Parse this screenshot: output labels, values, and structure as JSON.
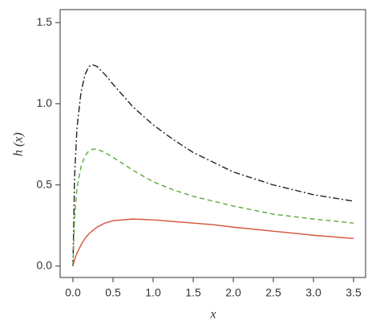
{
  "chart_data": {
    "type": "line",
    "x_label": "x",
    "y_label": "h (x)",
    "x": [
      0,
      0.02,
      0.05,
      0.1,
      0.15,
      0.2,
      0.25,
      0.3,
      0.4,
      0.5,
      0.75,
      1.0,
      1.25,
      1.5,
      1.75,
      2.0,
      2.5,
      3.0,
      3.5
    ],
    "series": [
      {
        "color": "#222222",
        "dash": "8 3 2 3",
        "values": [
          0,
          0.55,
          0.85,
          1.07,
          1.18,
          1.23,
          1.24,
          1.23,
          1.18,
          1.12,
          0.98,
          0.87,
          0.78,
          0.7,
          0.64,
          0.58,
          0.5,
          0.44,
          0.4
        ]
      },
      {
        "color": "#5aaa3c",
        "dash": "6 4",
        "values": [
          0,
          0.3,
          0.48,
          0.61,
          0.68,
          0.71,
          0.72,
          0.72,
          0.7,
          0.67,
          0.59,
          0.52,
          0.47,
          0.43,
          0.4,
          0.37,
          0.32,
          0.29,
          0.265
        ]
      },
      {
        "color": "#d2553a",
        "dash": "none",
        "values": [
          0,
          0.04,
          0.08,
          0.13,
          0.17,
          0.2,
          0.22,
          0.24,
          0.265,
          0.28,
          0.29,
          0.285,
          0.275,
          0.265,
          0.255,
          0.24,
          0.215,
          0.19,
          0.17
        ]
      }
    ],
    "xlim": [
      -0.16,
      3.65
    ],
    "ylim": [
      -0.07,
      1.58
    ],
    "xticks": [
      {
        "value": 0,
        "label": "0.0"
      },
      0.5,
      {
        "value": 1,
        "label": "1.0"
      },
      1.5,
      {
        "value": 2,
        "label": "2.0"
      },
      2.5,
      {
        "value": 3,
        "label": "3.0"
      },
      3.5
    ],
    "yticks": [
      {
        "value": 0,
        "label": "0.0"
      },
      0.5,
      {
        "value": 1,
        "label": "1.0"
      },
      1.5
    ],
    "grid": false
  }
}
